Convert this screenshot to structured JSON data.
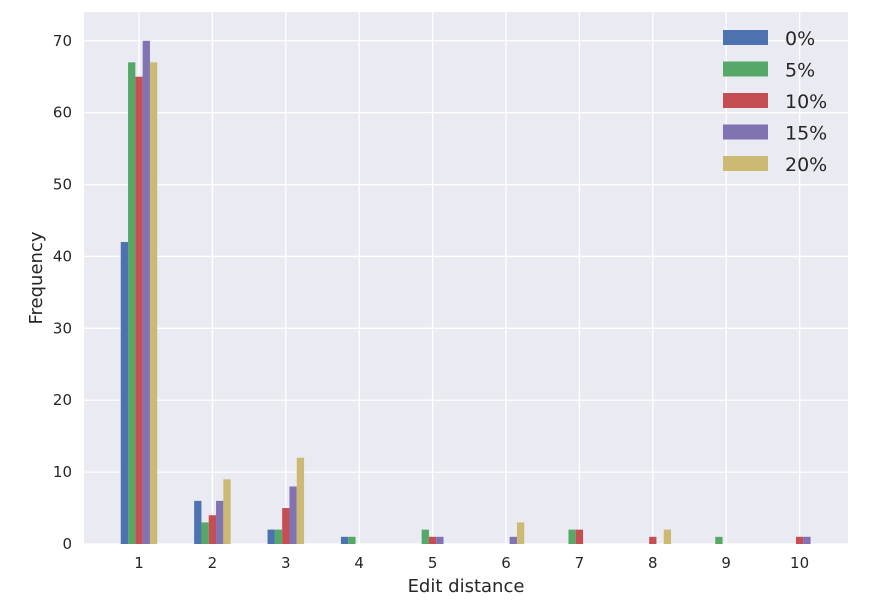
{
  "chart_data": {
    "type": "bar",
    "xlabel": "Edit distance",
    "ylabel": "Frequency",
    "categories": [
      "1",
      "2",
      "3",
      "4",
      "5",
      "6",
      "7",
      "8",
      "9",
      "10"
    ],
    "ylim": [
      0,
      74
    ],
    "yticks": [
      0,
      10,
      20,
      30,
      40,
      50,
      60,
      70
    ],
    "grid": true,
    "legend_position": "top-right",
    "series": [
      {
        "name": "0%",
        "color": "#4c72b0",
        "values": [
          42,
          6,
          2,
          1,
          0,
          0,
          0,
          0,
          0,
          0
        ]
      },
      {
        "name": "5%",
        "color": "#55a868",
        "values": [
          67,
          3,
          2,
          1,
          2,
          0,
          2,
          0,
          1,
          0
        ]
      },
      {
        "name": "10%",
        "color": "#c44e52",
        "values": [
          65,
          4,
          5,
          0,
          1,
          0,
          2,
          1,
          0,
          1
        ]
      },
      {
        "name": "15%",
        "color": "#8172b2",
        "values": [
          70,
          6,
          8,
          0,
          1,
          1,
          0,
          0,
          0,
          1
        ]
      },
      {
        "name": "20%",
        "color": "#ccb974",
        "values": [
          67,
          9,
          12,
          0,
          0,
          3,
          0,
          2,
          0,
          0
        ]
      }
    ]
  }
}
